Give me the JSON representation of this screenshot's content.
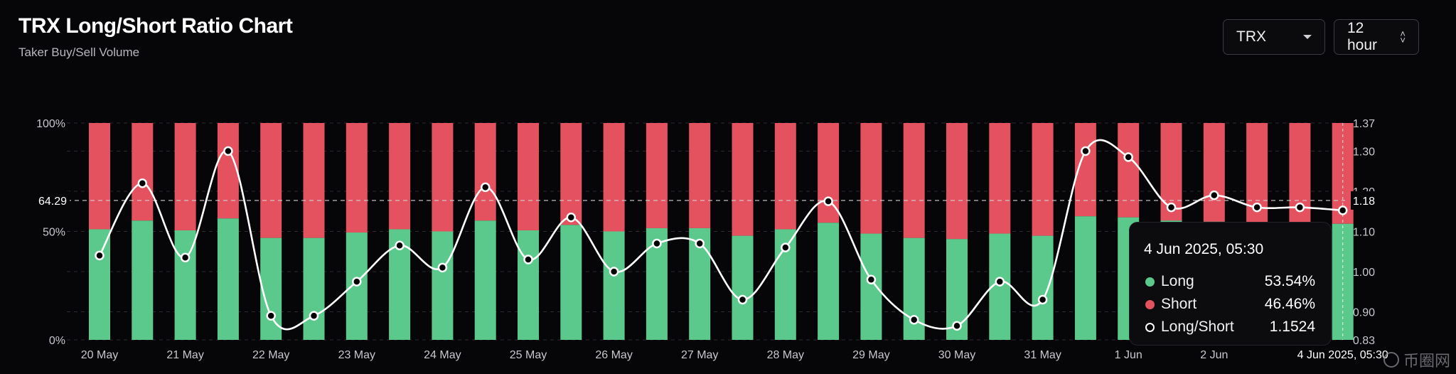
{
  "header": {
    "title": "TRX Long/Short Ratio Chart",
    "subtitle": "Taker Buy/Sell Volume"
  },
  "controls": {
    "coin": "TRX",
    "interval": "12 hour"
  },
  "colors": {
    "long": "#5cc98c",
    "short": "#e3525e",
    "ratio_line": "#ffffff",
    "background": "#060608"
  },
  "chart_data": {
    "type": "bar",
    "stacked": true,
    "title": "TRX Long/Short Ratio Chart",
    "categories": [
      "20 May",
      "",
      "21 May",
      "",
      "22 May",
      "",
      "23 May",
      "",
      "24 May",
      "",
      "25 May",
      "",
      "26 May",
      "",
      "27 May",
      "",
      "28 May",
      "",
      "29 May",
      "",
      "30 May",
      "",
      "31 May",
      "",
      "1 Jun",
      "",
      "2 Jun",
      "",
      "",
      "4 Jun 2025, 05:30"
    ],
    "x_tick_labels": [
      "20 May",
      "21 May",
      "22 May",
      "23 May",
      "24 May",
      "25 May",
      "26 May",
      "27 May",
      "28 May",
      "29 May",
      "30 May",
      "31 May",
      "1 Jun",
      "2 Jun",
      "4 Jun 2025, 05:30"
    ],
    "series": [
      {
        "name": "Long",
        "axis": "left",
        "values": [
          51,
          55,
          50.5,
          56,
          47,
          47,
          49.5,
          51,
          50,
          55,
          50.5,
          53,
          50,
          51.5,
          51.5,
          48,
          51,
          54,
          49,
          47,
          46.5,
          49,
          48,
          57,
          56.5,
          55,
          54.5,
          54,
          54,
          53.54
        ]
      },
      {
        "name": "Short",
        "axis": "left",
        "values": [
          49,
          45,
          49.5,
          44,
          53,
          53,
          50.5,
          49,
          50,
          45,
          49.5,
          47,
          50,
          48.5,
          48.5,
          52,
          49,
          46,
          51,
          53,
          53.5,
          51,
          52,
          43,
          43.5,
          45,
          45.5,
          46,
          46,
          46.46
        ]
      },
      {
        "name": "Long/Short",
        "type": "line",
        "axis": "right",
        "values": [
          1.04,
          1.22,
          1.035,
          1.3,
          0.89,
          0.89,
          0.975,
          1.065,
          1.01,
          1.21,
          1.03,
          1.135,
          1.0,
          1.07,
          1.07,
          0.93,
          1.06,
          1.175,
          0.98,
          0.88,
          0.865,
          0.975,
          0.93,
          1.3,
          1.285,
          1.16,
          1.19,
          1.16,
          1.16,
          1.1524
        ]
      }
    ],
    "y_left": {
      "ticks": [
        "0%",
        "50%",
        "100%"
      ],
      "range": [
        0,
        100
      ]
    },
    "y_right": {
      "ticks": [
        "0.83",
        "0.90",
        "1.00",
        "1.10",
        "1.20",
        "1.30",
        "1.37"
      ],
      "range": [
        0.83,
        1.37
      ]
    },
    "crosshair": {
      "left_label": "64.29",
      "left_value": 64.29,
      "right_label": "1.18",
      "right_value": 1.18,
      "index": 29
    },
    "legend": "none",
    "grid": true,
    "tooltip": {
      "date": "4 Jun 2025, 05:30",
      "rows": [
        {
          "name": "Long",
          "value": "53.54%"
        },
        {
          "name": "Short",
          "value": "46.46%"
        },
        {
          "name": "Long/Short",
          "value": "1.1524"
        }
      ]
    }
  },
  "watermark": "币圈网"
}
